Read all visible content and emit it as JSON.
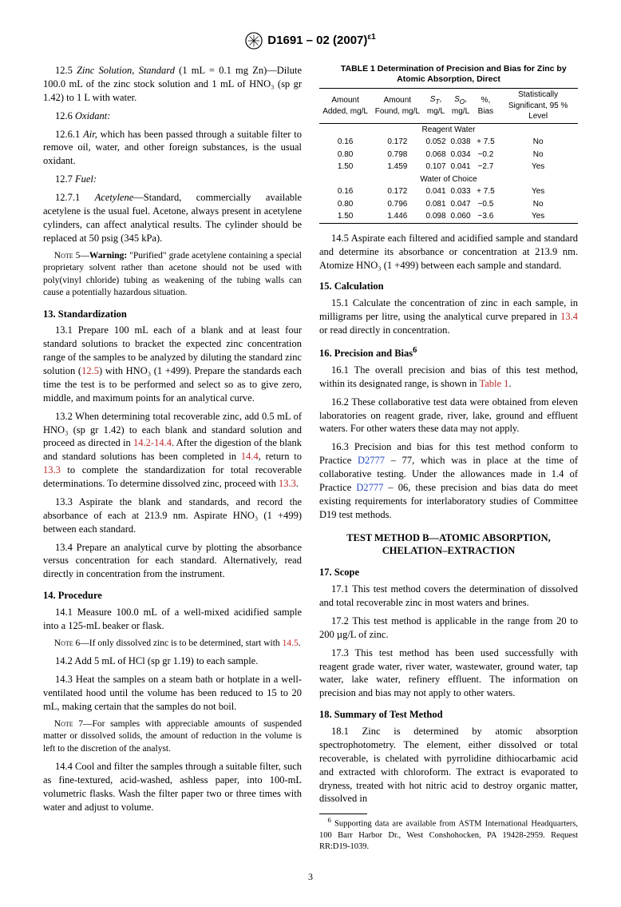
{
  "header": {
    "designation": "D1691 – 02 (2007)",
    "epsilon": "ε1"
  },
  "left": {
    "p12_5": "12.5 ",
    "p12_5_ital": "Zinc Solution, Standard",
    "p12_5_rest": " (1 mL = 0.1 mg Zn)—Dilute 100.0 mL of the zinc stock solution and 1 mL of HNO₃ (sp gr 1.42) to 1 L with water.",
    "p12_6": "12.6 ",
    "p12_6_ital": "Oxidant:",
    "p12_6_1": "12.6.1 ",
    "p12_6_1_ital": "Air,",
    "p12_6_1_rest": " which has been passed through a suitable filter to remove oil, water, and other foreign substances, is the usual oxidant.",
    "p12_7": "12.7 ",
    "p12_7_ital": "Fuel:",
    "p12_7_1": "12.7.1 ",
    "p12_7_1_ital": "Acetylene",
    "p12_7_1_rest": "—Standard, commercially available acetylene is the usual fuel. Acetone, always present in acetylene cylinders, can affect analytical results. The cylinder should be replaced at 50 psig (345 kPa).",
    "note5_label": "Note 5—",
    "note5_bold": "Warning:",
    "note5_rest": " \"Purified\" grade acetylene containing a special proprietary solvent rather than acetone should not be used with poly(vinyl chloride) tubing as weakening of the tubing walls can cause a potentially hazardous situation.",
    "s13_heading": "13. Standardization",
    "p13_1_a": "13.1 Prepare 100 mL each of a blank and at least four standard solutions to bracket the expected zinc concentration range of the samples to be analyzed by diluting the standard zinc solution (",
    "p13_1_ref": "12.5",
    "p13_1_b": ") with HNO₃ (1 +499). Prepare the standards each time the test is to be performed and select so as to give zero, middle, and maximum points for an analytical curve.",
    "p13_2_a": "13.2 When determining total recoverable zinc, add 0.5 mL of HNO₃ (sp gr 1.42) to each blank and standard solution and proceed as directed in ",
    "p13_2_ref1": "14.2-14.4",
    "p13_2_b": ". After the digestion of the blank and standard solutions has been completed in ",
    "p13_2_ref2": "14.4",
    "p13_2_c": ", return to ",
    "p13_2_ref3": "13.3",
    "p13_2_d": " to complete the standardization for total recoverable determinations. To determine dissolved zinc, proceed with ",
    "p13_2_ref4": "13.3",
    "p13_2_e": ".",
    "p13_3": "13.3 Aspirate the blank and standards, and record the absorbance of each at 213.9 nm. Aspirate HNO₃ (1 +499) between each standard.",
    "p13_4": "13.4 Prepare an analytical curve by plotting the absorbance versus concentration for each standard. Alternatively, read directly in concentration from the instrument.",
    "s14_heading": "14. Procedure",
    "p14_1": "14.1 Measure 100.0 mL of a well-mixed acidified sample into a 125-mL beaker or flask.",
    "note6_label": "Note 6—",
    "note6_rest": "If only dissolved zinc is to be determined, start with ",
    "note6_ref": "14.5",
    "note6_end": ".",
    "p14_2": "14.2 Add 5 mL of HCl (sp gr 1.19) to each sample.",
    "p14_3": "14.3 Heat the samples on a steam bath or hotplate in a well-ventilated hood until the volume has been reduced to 15 to 20 mL, making certain that the samples do not boil.",
    "note7_label": "Note 7—",
    "note7_rest": "For samples with appreciable amounts of suspended matter or dissolved solids, the amount of reduction in the volume is left to the discretion of the analyst.",
    "p14_4": "14.4 Cool and filter the samples through a suitable filter, such as fine-textured, acid-washed, ashless paper, into 100-mL volumetric flasks. Wash the filter paper two or three times with water and adjust to volume."
  },
  "table1": {
    "title": "TABLE 1 Determination of Precision and Bias for Zinc by Atomic Absorption, Direct",
    "headers": [
      "Amount Added, mg/L",
      "Amount Found, mg/L",
      "S_T, mg/L",
      "S_O, mg/L",
      "%, Bias",
      "Statistically Significant, 95 % Level"
    ],
    "sub1": "Reagent Water",
    "rows1": [
      [
        "0.16",
        "0.172",
        "0.052",
        "0.038",
        "+ 7.5",
        "No"
      ],
      [
        "0.80",
        "0.798",
        "0.068",
        "0.034",
        "−0.2",
        "No"
      ],
      [
        "1.50",
        "1.459",
        "0.107",
        "0.041",
        "−2.7",
        "Yes"
      ]
    ],
    "sub2": "Water of Choice",
    "rows2": [
      [
        "0.16",
        "0.172",
        "0.041",
        "0.033",
        "+ 7.5",
        "Yes"
      ],
      [
        "0.80",
        "0.796",
        "0.081",
        "0.047",
        "−0.5",
        "No"
      ],
      [
        "1.50",
        "1.446",
        "0.098",
        "0.060",
        "−3.6",
        "Yes"
      ]
    ]
  },
  "right": {
    "p14_5": "14.5 Aspirate each filtered and acidified sample and standard and determine its absorbance or concentration at 213.9 nm. Atomize HNO₃ (1 +499) between each sample and standard.",
    "s15_heading": "15. Calculation",
    "p15_1_a": "15.1 Calculate the concentration of zinc in each sample, in milligrams per litre, using the analytical curve prepared in ",
    "p15_1_ref": "13.4",
    "p15_1_b": " or read directly in concentration.",
    "s16_heading": "16. Precision and Bias",
    "s16_sup": "6",
    "p16_1_a": "16.1 The overall precision and bias of this test method, within its designated range, is shown in ",
    "p16_1_ref": "Table 1",
    "p16_1_b": ".",
    "p16_2": "16.2 These collaborative test data were obtained from eleven laboratories on reagent grade, river, lake, ground and effluent waters. For other waters these data may not apply.",
    "p16_3_a": "16.3 Precision and bias for this test method conform to Practice ",
    "p16_3_ref1": "D2777",
    "p16_3_b": " – 77, which was in place at the time of collaborative testing. Under the allowances made in 1.4 of Practice ",
    "p16_3_ref2": "D2777",
    "p16_3_c": " – 06, these precision and bias data do meet existing requirements for interlaboratory studies of Committee D19 test methods.",
    "methodB": "TEST METHOD B—ATOMIC ABSORPTION, CHELATION–EXTRACTION",
    "s17_heading": "17. Scope",
    "p17_1": "17.1 This test method covers the determination of dissolved and total recoverable zinc in most waters and brines.",
    "p17_2": "17.2 This test method is applicable in the range from 20 to 200 µg/L of zinc.",
    "p17_3": "17.3 This test method has been used successfully with reagent grade water, river water, wastewater, ground water, tap water, lake water, refinery effluent. The information on precision and bias may not apply to other waters.",
    "s18_heading": "18. Summary of Test Method",
    "p18_1": "18.1 Zinc is determined by atomic absorption spectrophotometry. The element, either dissolved or total recoverable, is chelated with pyrrolidine dithiocarbamic acid and extracted with chloroform. The extract is evaporated to dryness, treated with hot nitric acid to destroy organic matter, dissolved in",
    "footnote_sup": "6",
    "footnote": " Supporting data are available from ASTM International Headquarters, 100 Barr Harbor Dr., West Conshohocken, PA 19428-2959. Request RR:D19-1039."
  },
  "page_number": "3"
}
